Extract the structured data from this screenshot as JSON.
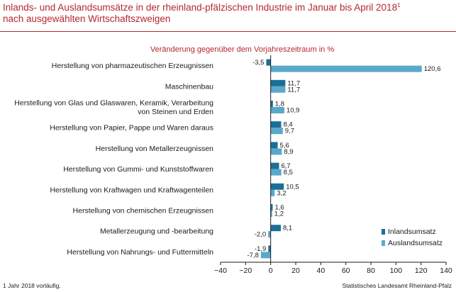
{
  "title": "Inlands- und Auslandsumsätze in der rheinland-pfälzischen Industrie im Januar bis April 2018",
  "title_sup": "1",
  "title_line2": "nach ausgewählten Wirtschaftszweigen",
  "subtitle": "Veränderung gegenüber dem Vorjahreszeitraum in %",
  "footnote": "1 Jahr 2018 vorläufig.",
  "source": "Statistisches Landesamt Rheinland-Pfalz",
  "colors": {
    "inland": "#1b6f96",
    "ausland": "#5aa9cc",
    "title": "#b5282f"
  },
  "chart_data": {
    "type": "bar",
    "orientation": "horizontal",
    "categories": [
      [
        "Herstellung von pharmazeutischen Erzeugnissen"
      ],
      [
        "Maschinenbau"
      ],
      [
        "Herstellung von Glas und Glaswaren, Keramik, Verarbeitung",
        "von Steinen und Erden"
      ],
      [
        "Herstellung von Papier, Pappe und Waren daraus"
      ],
      [
        "Herstellung von Metallerzeugnissen"
      ],
      [
        "Herstellung von Gummi- und Kunststoffwaren"
      ],
      [
        "Herstellung von Kraftwagen und Kraftwagenteilen"
      ],
      [
        "Herstellung von chemischen Erzeugnissen"
      ],
      [
        "Metallerzeugung und -bearbeitung"
      ],
      [
        "Herstellung von Nahrungs- und Futtermitteln"
      ]
    ],
    "series": [
      {
        "name": "Inlandsumsatz",
        "values": [
          -3.5,
          11.7,
          1.8,
          8.4,
          5.6,
          6.7,
          10.5,
          1.6,
          8.1,
          -1.9
        ],
        "labels": [
          "-3,5",
          "11,7",
          "1,8",
          "8,4",
          "5,6",
          "6,7",
          "10,5",
          "1,6",
          "8,1",
          "-1,9"
        ]
      },
      {
        "name": "Auslandsumsatz",
        "values": [
          120.6,
          11.7,
          10.9,
          9.7,
          8.9,
          8.5,
          3.2,
          1.2,
          -2.0,
          -7.8
        ],
        "labels": [
          "120,6",
          "11,7",
          "10,9",
          "9,7",
          "8,9",
          "8,5",
          "3,2",
          "1,2",
          "-2,0",
          "-7,8"
        ]
      }
    ],
    "xlim": [
      -40,
      140
    ],
    "xticks": [
      -40,
      -20,
      0,
      20,
      40,
      60,
      80,
      100,
      120,
      140
    ],
    "xtick_labels": [
      "−40",
      "−20",
      "0",
      "20",
      "40",
      "60",
      "80",
      "100",
      "120",
      "140"
    ],
    "grid": false,
    "legend_position": "bottom-right"
  }
}
